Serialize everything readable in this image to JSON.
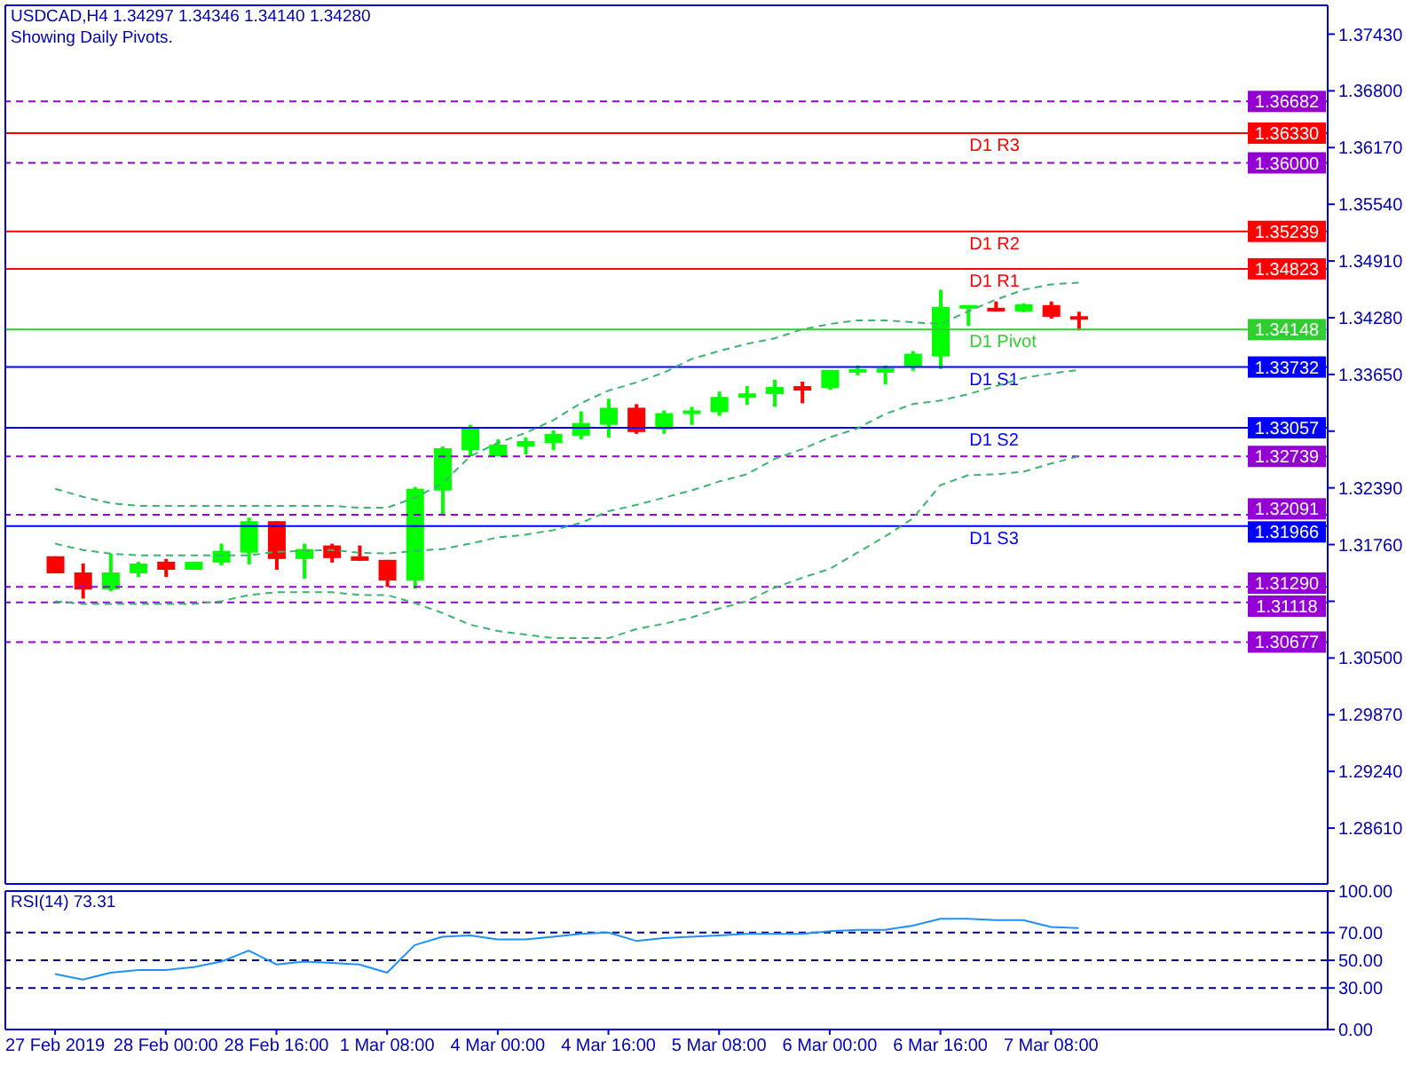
{
  "chart_data": [
    {
      "type": "candlestick",
      "title": "USDCAD,H4 1.34297 1.34346 1.34140 1.34280",
      "subtitle": "Showing Daily Pivots.",
      "categories": [
        null,
        null,
        null,
        null,
        null,
        null,
        null,
        null,
        null,
        null,
        null,
        null,
        null,
        null,
        null,
        null,
        null,
        null,
        null,
        null,
        null,
        null,
        null,
        null,
        null,
        null,
        null,
        null,
        null,
        null,
        null,
        null,
        null,
        null,
        null,
        null,
        null,
        null
      ],
      "ohlc": [
        [
          1.3163,
          1.3163,
          1.3144,
          1.3144
        ],
        [
          1.3145,
          1.3155,
          1.3116,
          1.3126
        ],
        [
          1.3126,
          1.3166,
          1.3124,
          1.3145
        ],
        [
          1.3144,
          1.3157,
          1.314,
          1.3155
        ],
        [
          1.3157,
          1.316,
          1.314,
          1.3148
        ],
        [
          1.3148,
          1.3157,
          1.3148,
          1.3157
        ],
        [
          1.3156,
          1.3177,
          1.3153,
          1.3169
        ],
        [
          1.3167,
          1.3206,
          1.3154,
          1.3202
        ],
        [
          1.3202,
          1.3202,
          1.3148,
          1.316
        ],
        [
          1.316,
          1.3177,
          1.3138,
          1.3171
        ],
        [
          1.3175,
          1.3177,
          1.3156,
          1.3161
        ],
        [
          1.3163,
          1.3175,
          1.3158,
          1.3158
        ],
        [
          1.3159,
          1.3159,
          1.3129,
          1.3136
        ],
        [
          1.3136,
          1.324,
          1.3127,
          1.3238
        ],
        [
          1.3236,
          1.3285,
          1.321,
          1.3283
        ],
        [
          1.3281,
          1.3309,
          1.3274,
          1.3306
        ],
        [
          1.3274,
          1.3293,
          1.3274,
          1.3287
        ],
        [
          1.3285,
          1.3295,
          1.3276,
          1.3291
        ],
        [
          1.3289,
          1.3303,
          1.3281,
          1.3299
        ],
        [
          1.3297,
          1.3324,
          1.3293,
          1.3311
        ],
        [
          1.3309,
          1.3338,
          1.3295,
          1.3328
        ],
        [
          1.3328,
          1.3332,
          1.3299,
          1.3301
        ],
        [
          1.3304,
          1.3325,
          1.3299,
          1.3322
        ],
        [
          1.3321,
          1.3329,
          1.3309,
          1.3325
        ],
        [
          1.3323,
          1.3346,
          1.3319,
          1.334
        ],
        [
          1.3339,
          1.3352,
          1.3331,
          1.3344
        ],
        [
          1.3343,
          1.3359,
          1.3329,
          1.3351
        ],
        [
          1.3352,
          1.3357,
          1.3333,
          1.3347
        ],
        [
          1.335,
          1.337,
          1.3348,
          1.337
        ],
        [
          1.3367,
          1.3375,
          1.3364,
          1.3371
        ],
        [
          1.3367,
          1.3375,
          1.3354,
          1.3372
        ],
        [
          1.3374,
          1.3391,
          1.3369,
          1.3388
        ],
        [
          1.3385,
          1.3459,
          1.3371,
          1.344
        ],
        [
          1.3438,
          1.3442,
          1.3419,
          1.3442
        ],
        [
          1.3439,
          1.3446,
          1.3435,
          1.3435
        ],
        [
          1.3435,
          1.3444,
          1.3434,
          1.3443
        ],
        [
          1.3442,
          1.3446,
          1.3427,
          1.3429
        ],
        [
          1.34297,
          1.34346,
          1.3414,
          1.3428
        ]
      ],
      "colors": [
        "#ff0000",
        "#ff0000",
        "#00ff00",
        "#00ff00",
        "#ff0000",
        "#00ff00",
        "#00ff00",
        "#00ff00",
        "#ff0000",
        "#00ff00",
        "#ff0000",
        "#ff0000",
        "#ff0000",
        "#00ff00",
        "#00ff00",
        "#00ff00",
        "#00ff00",
        "#00ff00",
        "#00ff00",
        "#00ff00",
        "#00ff00",
        "#ff0000",
        "#00ff00",
        "#00ff00",
        "#00ff00",
        "#00ff00",
        "#00ff00",
        "#ff0000",
        "#00ff00",
        "#00ff00",
        "#00ff00",
        "#00ff00",
        "#00ff00",
        "#00ff00",
        "#ff0000",
        "#00ff00",
        "#ff0000",
        "#ff0000"
      ],
      "series": [
        {
          "type": "line",
          "color": "#3cb371",
          "line_style": "dashed",
          "values": [
            1.3238,
            1.3229,
            1.3222,
            1.3219,
            1.3219,
            1.3219,
            1.3219,
            1.3219,
            1.3219,
            1.3219,
            1.3219,
            1.3217,
            1.3217,
            1.3228,
            1.3244,
            1.3274,
            1.3289,
            1.33,
            1.3314,
            1.3333,
            1.3347,
            1.3356,
            1.3367,
            1.3382,
            1.3391,
            1.3399,
            1.3405,
            1.3415,
            1.3421,
            1.3425,
            1.3425,
            1.3423,
            1.3421,
            1.3435,
            1.3448,
            1.3459,
            1.3465,
            1.3467
          ]
        },
        {
          "type": "line",
          "color": "#3cb371",
          "line_style": "dashed",
          "values": [
            1.3177,
            1.317,
            1.3166,
            1.3164,
            1.3164,
            1.3164,
            1.3164,
            1.3164,
            1.3168,
            1.3169,
            1.317,
            1.3167,
            1.3166,
            1.3169,
            1.3171,
            1.3177,
            1.3184,
            1.3187,
            1.3192,
            1.32,
            1.3213,
            1.322,
            1.3228,
            1.3236,
            1.3246,
            1.3254,
            1.3271,
            1.3282,
            1.3295,
            1.3305,
            1.3321,
            1.3332,
            1.3336,
            1.3343,
            1.3352,
            1.3361,
            1.3366,
            1.337
          ]
        },
        {
          "type": "line",
          "color": "#3cb371",
          "line_style": "dashed",
          "values": [
            1.3113,
            1.311,
            1.311,
            1.311,
            1.311,
            1.311,
            1.3113,
            1.312,
            1.3123,
            1.3123,
            1.3123,
            1.312,
            1.312,
            1.3111,
            1.31,
            1.3087,
            1.308,
            1.3076,
            1.3072,
            1.3072,
            1.3072,
            1.3082,
            1.3088,
            1.3095,
            1.3105,
            1.3113,
            1.3128,
            1.3139,
            1.3149,
            1.3167,
            1.3185,
            1.3205,
            1.3242,
            1.3253,
            1.3254,
            1.3257,
            1.3266,
            1.3274
          ]
        }
      ],
      "ylim": [
        1.2799,
        1.3775
      ],
      "yticks": [
        {
          "value": 1.2861,
          "label": "1.28610"
        },
        {
          "value": 1.2924,
          "label": "1.29240"
        },
        {
          "value": 1.2987,
          "label": "1.29870"
        },
        {
          "value": 1.305,
          "label": "1.30500"
        },
        {
          "value": 1.3113,
          "label": null
        },
        {
          "value": 1.3176,
          "label": "1.31760"
        },
        {
          "value": 1.3239,
          "label": "1.32390"
        },
        {
          "value": 1.3302,
          "label": null
        },
        {
          "value": 1.3365,
          "label": "1.33650"
        },
        {
          "value": 1.3428,
          "label": "1.34280"
        },
        {
          "value": 1.3491,
          "label": "1.34910"
        },
        {
          "value": 1.3554,
          "label": "1.35540"
        },
        {
          "value": 1.3617,
          "label": "1.36170"
        },
        {
          "value": 1.368,
          "label": "1.36800"
        },
        {
          "value": 1.3743,
          "label": "1.37430"
        }
      ],
      "ref_lines": [
        {
          "axis": "y",
          "value": 1.36682,
          "color": "#9400d3",
          "line_style": "dashed"
        },
        {
          "axis": "y",
          "value": 1.3633,
          "label": "D1 R3",
          "color": "#ff0000",
          "line_style": "solid"
        },
        {
          "axis": "y",
          "value": 1.36,
          "color": "#9400d3",
          "line_style": "dashed"
        },
        {
          "axis": "y",
          "value": 1.35239,
          "label": "D1 R2",
          "color": "#ff0000",
          "line_style": "solid"
        },
        {
          "axis": "y",
          "value": 1.34823,
          "label": "D1 R1",
          "color": "#ff0000",
          "line_style": "solid"
        },
        {
          "axis": "y",
          "value": 1.34148,
          "label": "D1 Pivot",
          "color": "#32cd32",
          "line_style": "solid"
        },
        {
          "axis": "y",
          "value": 1.33732,
          "label": "D1 S1",
          "color": "#0000ff",
          "line_style": "solid"
        },
        {
          "axis": "y",
          "value": 1.33057,
          "label": "D1 S2",
          "color": "#0000ff",
          "line_style": "solid"
        },
        {
          "axis": "y",
          "value": 1.32739,
          "color": "#9400d3",
          "line_style": "dashed"
        },
        {
          "axis": "y",
          "value": 1.32091,
          "color": "#9400d3",
          "line_style": "dashed"
        },
        {
          "axis": "y",
          "value": 1.31966,
          "label": "D1 S3",
          "color": "#0000ff",
          "line_style": "solid"
        },
        {
          "axis": "y",
          "value": 1.3129,
          "color": "#9400d3",
          "line_style": "dashed"
        },
        {
          "axis": "y",
          "value": 1.31118,
          "color": "#9400d3",
          "line_style": "dashed"
        },
        {
          "axis": "y",
          "value": 1.30677,
          "color": "#9400d3",
          "line_style": "dashed"
        }
      ],
      "annotations": [
        {
          "text": "1.36682",
          "y": 1.36682
        },
        {
          "text": "1.36330",
          "y": 1.3633
        },
        {
          "text": "1.36000",
          "y": 1.36
        },
        {
          "text": "1.35239",
          "y": 1.35239
        },
        {
          "text": "1.34823",
          "y": 1.34823
        },
        {
          "text": "1.34148",
          "y": 1.34148
        },
        {
          "text": "1.33732",
          "y": 1.33732
        },
        {
          "text": "1.33057",
          "y": 1.33057
        },
        {
          "text": "1.32739",
          "y": 1.32739
        },
        {
          "text": "1.32091",
          "y": 1.32091
        },
        {
          "text": "1.31966",
          "y": 1.31966
        },
        {
          "text": "1.31290",
          "y": 1.3129
        },
        {
          "text": "1.31118",
          "y": 1.31118
        },
        {
          "text": "1.30677",
          "y": 1.30677
        }
      ],
      "tick_labels": "y"
    },
    {
      "type": "line",
      "title": "RSI(14) 73.31",
      "categories": [
        "27 Feb 2019",
        null,
        null,
        null,
        "28 Feb 00:00",
        null,
        null,
        null,
        "28 Feb 16:00",
        null,
        null,
        null,
        "1 Mar 08:00",
        null,
        null,
        null,
        "4 Mar 00:00",
        null,
        null,
        null,
        "4 Mar 16:00",
        null,
        null,
        null,
        "5 Mar 08:00",
        null,
        null,
        null,
        "6 Mar 00:00",
        null,
        null,
        null,
        "6 Mar 16:00",
        null,
        null,
        null,
        "7 Mar 08:00",
        null
      ],
      "values": [
        40,
        36,
        41,
        43,
        43,
        45,
        49,
        57,
        47,
        49,
        48,
        47,
        41,
        61,
        67,
        68,
        65,
        65,
        67,
        69,
        70,
        64,
        66,
        67,
        68,
        69,
        69,
        69,
        71,
        72,
        72,
        75,
        80,
        80,
        79,
        79,
        74,
        73.31
      ],
      "color": "#1e90ff",
      "ylim": [
        0,
        100
      ],
      "yticks": [
        {
          "value": 0,
          "label": "0.00"
        },
        {
          "value": 30,
          "label": "30.00"
        },
        {
          "value": 50,
          "label": "50.00"
        },
        {
          "value": 70,
          "label": "70.00"
        },
        {
          "value": 100,
          "label": "100.00"
        }
      ],
      "ref_lines": [
        {
          "axis": "y",
          "value": 70,
          "color": "#000080",
          "line_style": "dashed"
        },
        {
          "axis": "y",
          "value": 50,
          "color": "#000080",
          "line_style": "dashed"
        },
        {
          "axis": "y",
          "value": 30,
          "color": "#000080",
          "line_style": "dashed"
        }
      ]
    }
  ]
}
